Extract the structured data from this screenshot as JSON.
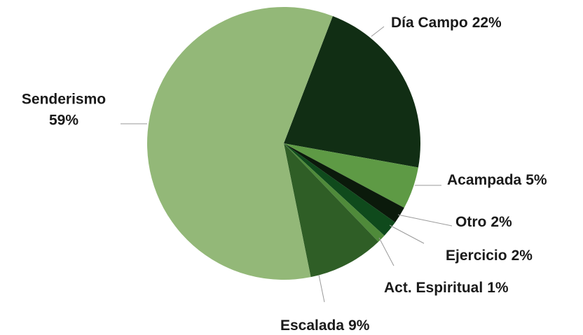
{
  "chart_data": {
    "type": "pie",
    "categories": [
      "Día Campo",
      "Acampada",
      "Otro",
      "Ejercicio",
      "Act. Espiritual",
      "Escalada",
      "Senderismo"
    ],
    "values": [
      22,
      5,
      2,
      2,
      1,
      9,
      59
    ],
    "value_labels": [
      "22%",
      "5%",
      "2%",
      "2%",
      "1%",
      "9%",
      "59%"
    ],
    "colors": [
      "#112e14",
      "#5e9a45",
      "#0b1a0b",
      "#0f4a1c",
      "#4f8a3a",
      "#2f5e26",
      "#93b878"
    ]
  }
}
